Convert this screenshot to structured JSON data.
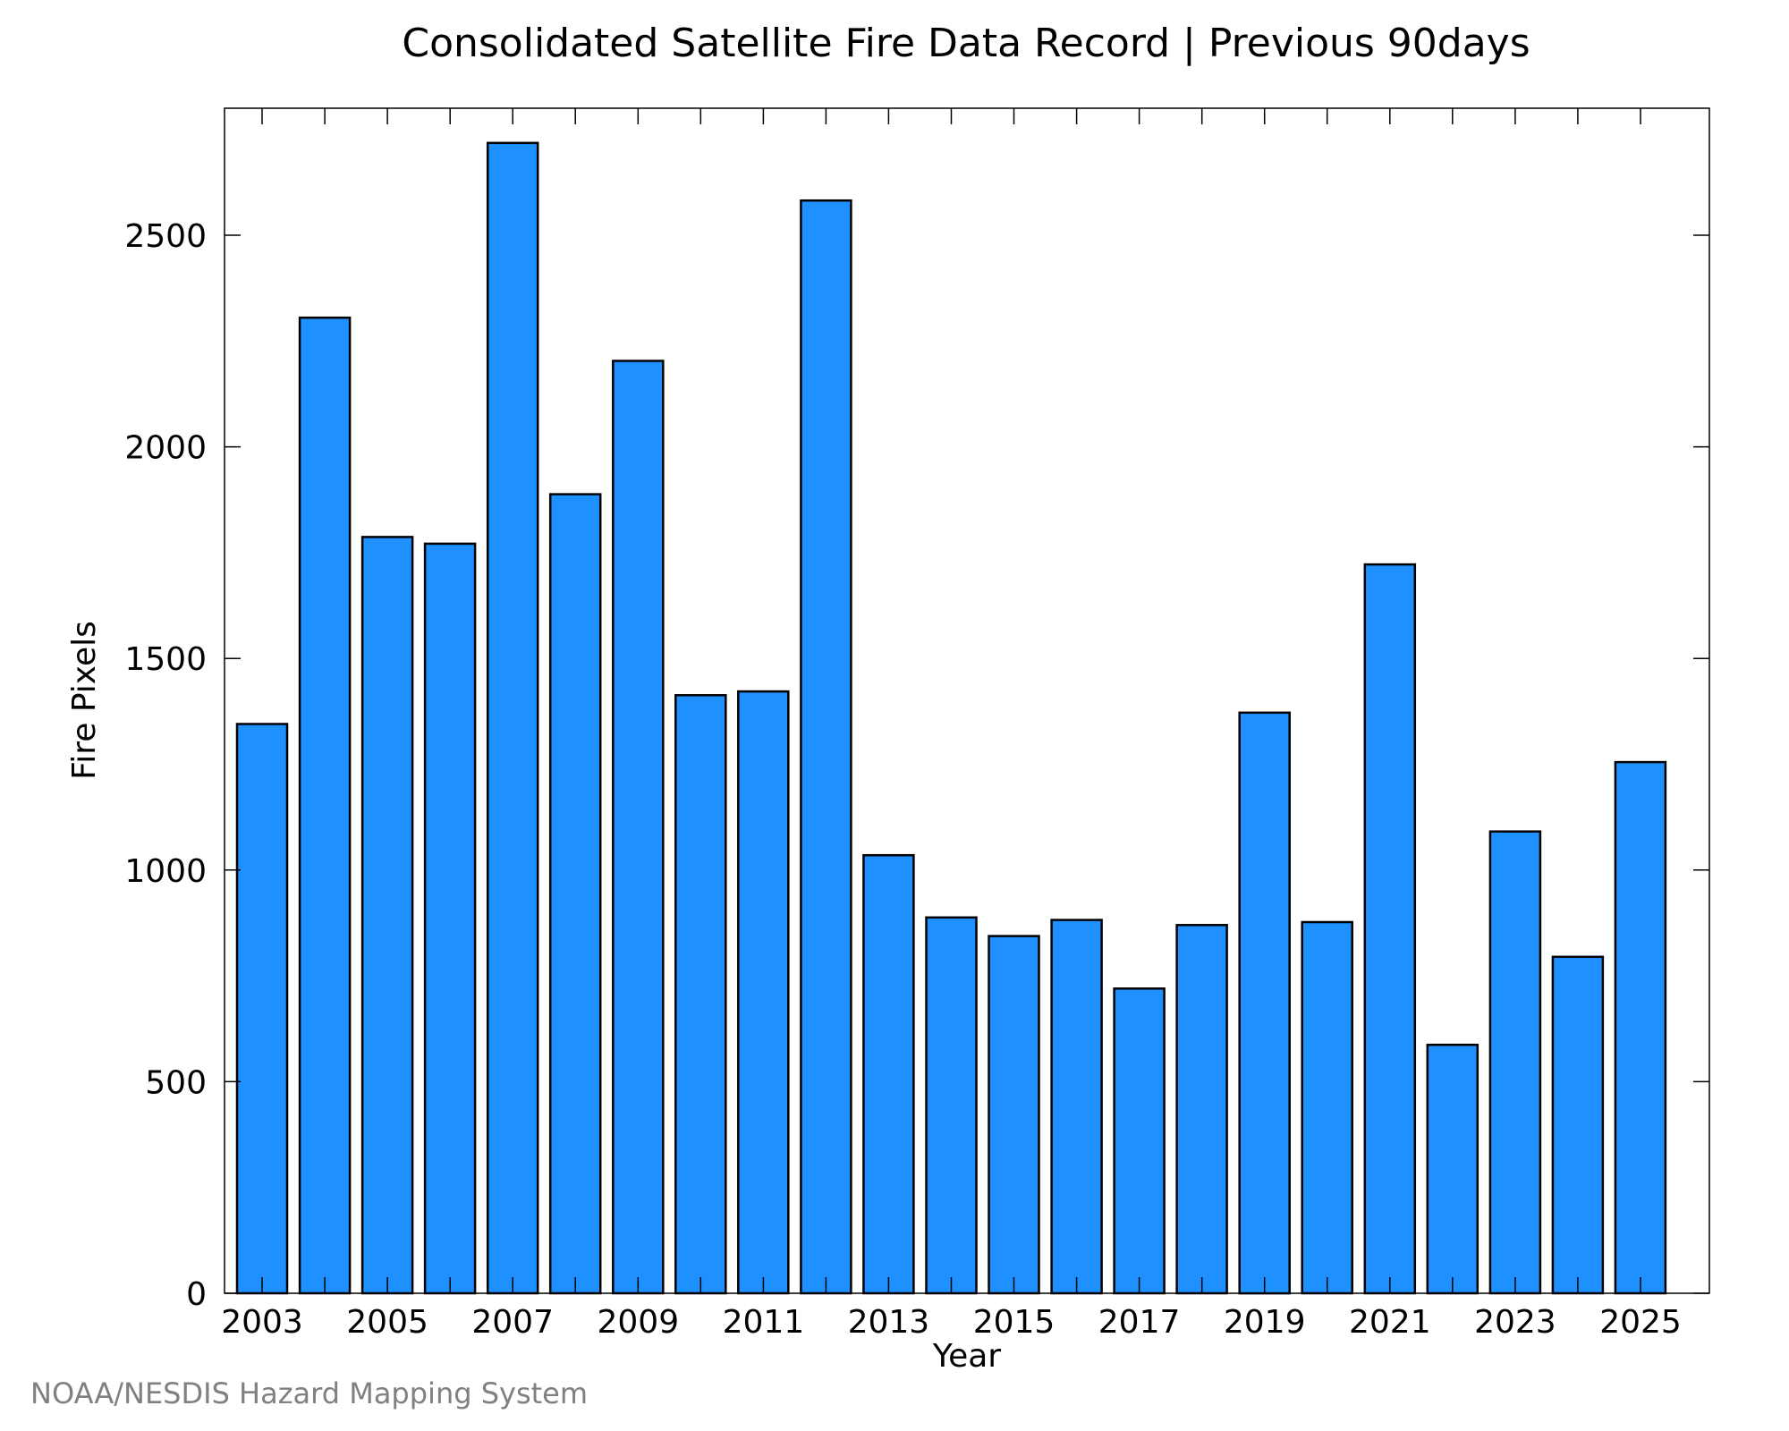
{
  "chart_data": {
    "type": "bar",
    "title": "Consolidated Satellite Fire Data Record | Previous 90days",
    "xlabel": "Year",
    "ylabel": "Fire Pixels",
    "credit": "NOAA/NESDIS Hazard Mapping System",
    "categories": [
      2003,
      2004,
      2005,
      2006,
      2007,
      2008,
      2009,
      2010,
      2011,
      2012,
      2013,
      2014,
      2015,
      2016,
      2017,
      2018,
      2019,
      2020,
      2021,
      2022,
      2023,
      2024,
      2025
    ],
    "values": [
      1345,
      2305,
      1787,
      1771,
      2718,
      1888,
      2203,
      1413,
      1422,
      2582,
      1035,
      888,
      844,
      882,
      720,
      870,
      1372,
      877,
      1722,
      587,
      1091,
      795,
      1255
    ],
    "ylim": [
      0,
      2800
    ],
    "yticks": [
      0,
      500,
      1000,
      1500,
      2000,
      2500
    ],
    "xticks": [
      2003,
      2005,
      2007,
      2009,
      2011,
      2013,
      2015,
      2017,
      2019,
      2021,
      2023,
      2025
    ],
    "grid": false,
    "bar_color": "#1e90ff",
    "edge_color": "#000000"
  }
}
